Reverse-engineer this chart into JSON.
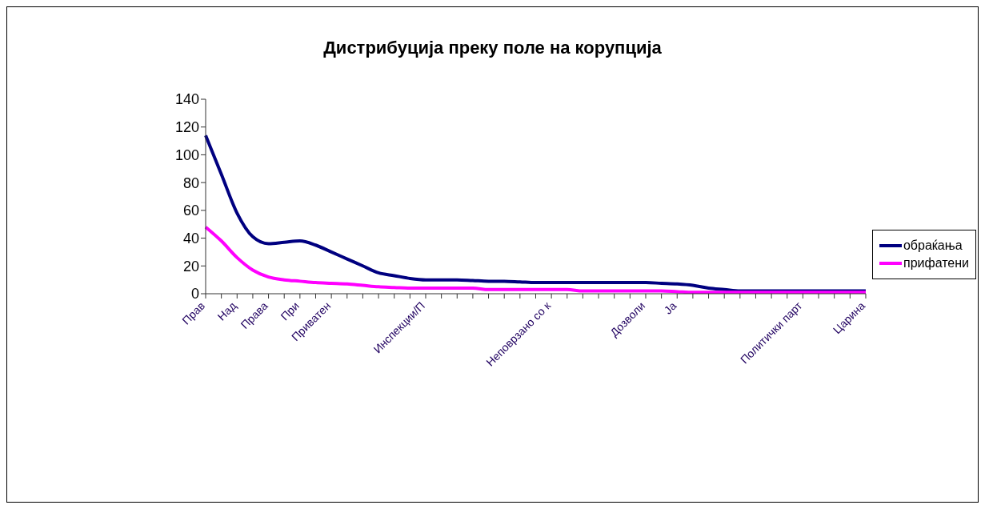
{
  "chart_data": {
    "type": "line",
    "title": "Дистрибуција преку поле на корупција",
    "categories": [
      "Прав",
      null,
      "Над",
      null,
      "Права",
      null,
      "При",
      null,
      "Приватен",
      null,
      null,
      null,
      null,
      null,
      "Инспекции/П",
      null,
      null,
      null,
      null,
      null,
      null,
      null,
      "Неповрзано со к",
      null,
      null,
      null,
      null,
      null,
      "Дозволи",
      null,
      "Ја",
      null,
      null,
      null,
      null,
      null,
      null,
      null,
      "Политички парт",
      null,
      null,
      null,
      "Царина"
    ],
    "series": [
      {
        "name": "обраќања",
        "color": "#000080",
        "values": [
          114,
          86,
          58,
          41,
          36,
          37,
          38,
          35,
          30,
          25,
          20,
          15,
          13,
          11,
          10,
          10,
          10,
          9.5,
          9,
          9,
          8.5,
          8,
          8,
          8,
          8,
          8,
          8,
          8,
          8,
          7.5,
          7,
          6,
          4,
          3,
          2,
          2,
          2,
          2,
          2,
          2,
          2,
          2,
          2
        ]
      },
      {
        "name": "прифатени",
        "color": "#ff00ff",
        "values": [
          48,
          38,
          26,
          17,
          12,
          10,
          9,
          8,
          7.5,
          7,
          6,
          5,
          4.5,
          4,
          4,
          4,
          4,
          4,
          3,
          3,
          3,
          3,
          3,
          3,
          2,
          2,
          2,
          2,
          2,
          2,
          1.5,
          1,
          1,
          1,
          1,
          1,
          1,
          1,
          1,
          1,
          1,
          1,
          1
        ]
      }
    ],
    "ylim": [
      0,
      140
    ],
    "yticks": [
      0,
      20,
      40,
      60,
      80,
      100,
      120,
      140
    ],
    "legend": "right",
    "marker": "none"
  }
}
